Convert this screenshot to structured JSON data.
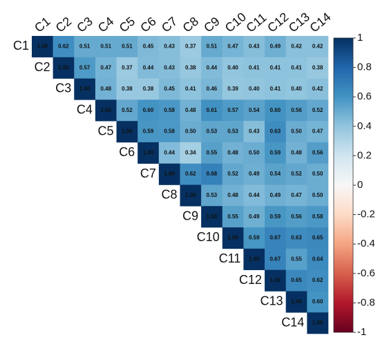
{
  "chart_data": {
    "type": "heatmap",
    "categories": [
      "C1",
      "C2",
      "C3",
      "C4",
      "C5",
      "C6",
      "C7",
      "C8",
      "C9",
      "C10",
      "C11",
      "C12",
      "C13",
      "C14"
    ],
    "values": [
      [
        1.0,
        0.62,
        0.51,
        0.51,
        0.51,
        0.45,
        0.43,
        0.37,
        0.51,
        0.47,
        0.43,
        0.49,
        0.42,
        0.42
      ],
      [
        null,
        1.0,
        0.57,
        0.47,
        0.37,
        0.44,
        0.43,
        0.38,
        0.44,
        0.4,
        0.41,
        0.41,
        0.41,
        0.38
      ],
      [
        null,
        null,
        1.0,
        0.48,
        0.38,
        0.38,
        0.45,
        0.41,
        0.46,
        0.39,
        0.4,
        0.41,
        0.4,
        0.42
      ],
      [
        null,
        null,
        null,
        1.0,
        0.52,
        0.6,
        0.58,
        0.48,
        0.61,
        0.57,
        0.54,
        0.6,
        0.56,
        0.52
      ],
      [
        null,
        null,
        null,
        null,
        1.0,
        0.59,
        0.58,
        0.5,
        0.53,
        0.53,
        0.43,
        0.63,
        0.5,
        0.47
      ],
      [
        null,
        null,
        null,
        null,
        null,
        1.0,
        0.44,
        0.34,
        0.55,
        0.48,
        0.5,
        0.59,
        0.48,
        0.56
      ],
      [
        null,
        null,
        null,
        null,
        null,
        null,
        1.0,
        0.62,
        0.68,
        0.52,
        0.49,
        0.54,
        0.52,
        0.5
      ],
      [
        null,
        null,
        null,
        null,
        null,
        null,
        null,
        1.0,
        0.53,
        0.48,
        0.44,
        0.49,
        0.47,
        0.5
      ],
      [
        null,
        null,
        null,
        null,
        null,
        null,
        null,
        null,
        1.0,
        0.55,
        0.49,
        0.59,
        0.56,
        0.58
      ],
      [
        null,
        null,
        null,
        null,
        null,
        null,
        null,
        null,
        null,
        1.0,
        0.59,
        0.67,
        0.63,
        0.65
      ],
      [
        null,
        null,
        null,
        null,
        null,
        null,
        null,
        null,
        null,
        null,
        1.0,
        0.67,
        0.55,
        0.64
      ],
      [
        null,
        null,
        null,
        null,
        null,
        null,
        null,
        null,
        null,
        null,
        null,
        1.0,
        0.65,
        0.62
      ],
      [
        null,
        null,
        null,
        null,
        null,
        null,
        null,
        null,
        null,
        null,
        null,
        null,
        1.0,
        0.6
      ],
      [
        null,
        null,
        null,
        null,
        null,
        null,
        null,
        null,
        null,
        null,
        null,
        null,
        null,
        1.0
      ]
    ],
    "value_labels": [
      [
        "1.00",
        "0.62",
        "0.51",
        "0.51",
        "0.51",
        "0.45",
        "0.43",
        "0.37",
        "0.51",
        "0.47",
        "0.43",
        "0.49",
        "0.42",
        "0.42"
      ],
      [
        null,
        "1.00",
        "0.57",
        "0.47",
        "0.37",
        "0.44",
        "0.43",
        "0.38",
        "0.44",
        "0.40",
        "0.41",
        "0.41",
        "0.41",
        "0.38"
      ],
      [
        null,
        null,
        "1.00",
        "0.48",
        "0.38",
        "0.38",
        "0.45",
        "0.41",
        "0.46",
        "0.39",
        "0.40",
        "0.41",
        "0.40",
        "0.42"
      ],
      [
        null,
        null,
        null,
        "1.00",
        "0.52",
        "0.60",
        "0.58",
        "0.48",
        "0.61",
        "0.57",
        "0.54",
        "0.60",
        "0.56",
        "0.52"
      ],
      [
        null,
        null,
        null,
        null,
        "1.00",
        "0.59",
        "0.58",
        "0.50",
        "0.53",
        "0.53",
        "0.43",
        "0.63",
        "0.50",
        "0.47"
      ],
      [
        null,
        null,
        null,
        null,
        null,
        "1.00",
        "0.44",
        "0.34",
        "0.55",
        "0.48",
        "0.50",
        "0.59",
        "0.48",
        "0.56"
      ],
      [
        null,
        null,
        null,
        null,
        null,
        null,
        "1.00",
        "0.62",
        "0.68",
        "0.52",
        "0.49",
        "0.54",
        "0.52",
        "0.50"
      ],
      [
        null,
        null,
        null,
        null,
        null,
        null,
        null,
        "1.00",
        "0.53",
        "0.48",
        "0.44",
        "0.49",
        "0.47",
        "0.50"
      ],
      [
        null,
        null,
        null,
        null,
        null,
        null,
        null,
        null,
        "1.00",
        "0.55",
        "0.49",
        "0.59",
        "0.56",
        "0.58"
      ],
      [
        null,
        null,
        null,
        null,
        null,
        null,
        null,
        null,
        null,
        "1.00",
        "0.59",
        "0.67",
        "0.63",
        "0.65"
      ],
      [
        null,
        null,
        null,
        null,
        null,
        null,
        null,
        null,
        null,
        null,
        "1.00",
        "0.67",
        "0.55",
        "0.64"
      ],
      [
        null,
        null,
        null,
        null,
        null,
        null,
        null,
        null,
        null,
        null,
        null,
        "1.00",
        "0.65",
        "0.62"
      ],
      [
        null,
        null,
        null,
        null,
        null,
        null,
        null,
        null,
        null,
        null,
        null,
        null,
        "1.00",
        "0.60"
      ],
      [
        null,
        null,
        null,
        null,
        null,
        null,
        null,
        null,
        null,
        null,
        null,
        null,
        null,
        "1.00"
      ]
    ],
    "colorscale": [
      "#67001f",
      "#b2182b",
      "#d6604d",
      "#f4a582",
      "#fddbc7",
      "#f7f7f7",
      "#d1e5f0",
      "#92c5de",
      "#4393c3",
      "#2166ac",
      "#053061"
    ],
    "clim": [
      -1,
      1
    ],
    "cticks": [
      1,
      0.8,
      0.6,
      0.4,
      0.2,
      0,
      -0.2,
      -0.4,
      -0.6,
      -0.8,
      -1
    ]
  }
}
